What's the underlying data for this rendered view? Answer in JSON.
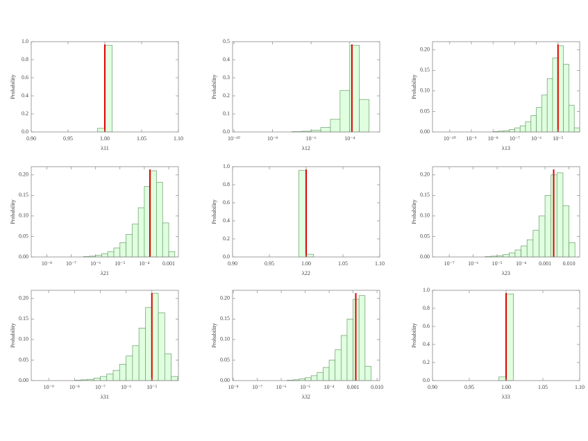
{
  "chart_data": [
    {
      "type": "histogram",
      "xlabel": "λ11",
      "ylabel": "Probability",
      "xscale": "linear",
      "color": "#dfffdf",
      "line_color": "#e00000",
      "bins": [
        0.99,
        1.0,
        1.01
      ],
      "values": [
        0.04,
        0.96
      ],
      "reference_line": 1.0,
      "xlim": [
        0.9,
        1.1
      ],
      "xticks": [
        {
          "value": 0.9,
          "label": "0.90"
        },
        0.95,
        {
          "value": 1,
          "label": "1.00"
        },
        1.05,
        {
          "value": 1.1,
          "label": "1.10"
        }
      ],
      "ylim": [
        0,
        1
      ],
      "yticks": [
        {
          "value": 0,
          "label": "0.0"
        },
        0.2,
        0.4,
        0.6,
        0.8,
        {
          "value": 1,
          "label": "1.0"
        }
      ]
    },
    {
      "type": "histogram",
      "xlabel": "λ12",
      "ylabel": "Probability",
      "xscale": "log",
      "color": "#dfffdf",
      "line_color": "#e00000",
      "bins": [
        1e-07,
        3.162e-07,
        1e-06,
        3.162e-06,
        1e-05,
        3.162e-05,
        0.0001,
        0.0003162,
        0.001
      ],
      "values": [
        0.002,
        0.004,
        0.01,
        0.025,
        0.07,
        0.23,
        0.48,
        0.18
      ],
      "reference_line": 0.00013,
      "xlim": [
        8.5e-11,
        0.0036
      ],
      "xticks": [
        {
          "value": 1e-10,
          "label": "10⁻¹⁰"
        },
        {
          "value": 1e-08,
          "label": "10⁻⁸"
        },
        {
          "value": 1e-06,
          "label": "10⁻⁶"
        },
        {
          "value": 0.0001,
          "label": "10⁻⁴"
        }
      ],
      "ylim": [
        0,
        0.5
      ],
      "yticks": [
        {
          "value": 0,
          "label": "0.0"
        },
        0.1,
        0.2,
        0.3,
        0.4,
        0.5
      ]
    },
    {
      "type": "histogram",
      "xlabel": "λ13",
      "ylabel": "Probability",
      "xscale": "log",
      "color": "#dfffdf",
      "line_color": "#e00000",
      "bins": [
        1e-08,
        1.778e-08,
        3.162e-08,
        5.623e-08,
        1e-07,
        1.778e-07,
        3.162e-07,
        5.623e-07,
        1e-06,
        1.778e-06,
        3.162e-06,
        5.623e-06,
        1e-05,
        1.778e-05,
        3.162e-05,
        5.623e-05,
        0.0001
      ],
      "values": [
        0.001,
        0.002,
        0.003,
        0.006,
        0.01,
        0.015,
        0.025,
        0.04,
        0.06,
        0.09,
        0.13,
        0.18,
        0.21,
        0.165,
        0.065,
        0.01
      ],
      "reference_line": 1e-05,
      "xlim": [
        1.6e-11,
        0.0001
      ],
      "xticks": [
        {
          "value": 1e-10,
          "label": "10⁻¹⁰"
        },
        {
          "value": 1e-09,
          "label": "10⁻⁹"
        },
        {
          "value": 1e-08,
          "label": "10⁻⁸"
        },
        {
          "value": 1e-07,
          "label": "10⁻⁷"
        },
        {
          "value": 1e-06,
          "label": "10⁻⁶"
        },
        {
          "value": 1e-05,
          "label": "10⁻⁵"
        }
      ],
      "ylim": [
        0,
        0.22
      ],
      "yticks": [
        {
          "value": 0,
          "label": "0.00"
        },
        0.05,
        {
          "value": 0.1,
          "label": "0.10"
        },
        0.15,
        {
          "value": 0.2,
          "label": "0.20"
        }
      ]
    },
    {
      "type": "histogram",
      "xlabel": "λ21",
      "ylabel": "Probability",
      "xscale": "log",
      "color": "#dfffdf",
      "line_color": "#e00000",
      "bins": [
        3.162e-07,
        5.623e-07,
        1e-06,
        1.778e-06,
        3.162e-06,
        5.623e-06,
        1e-05,
        1.778e-05,
        3.162e-05,
        5.623e-05,
        0.0001,
        0.0001778,
        0.0003162,
        0.0005623,
        0.001,
        0.001778
      ],
      "values": [
        0.001,
        0.002,
        0.004,
        0.008,
        0.013,
        0.022,
        0.035,
        0.055,
        0.08,
        0.12,
        0.172,
        0.21,
        0.182,
        0.083,
        0.013
      ],
      "reference_line": 0.00017,
      "xlim": [
        2.3e-09,
        0.0025
      ],
      "xticks": [
        {
          "value": 1e-08,
          "label": "10⁻⁸"
        },
        {
          "value": 1e-07,
          "label": "10⁻⁷"
        },
        {
          "value": 1e-06,
          "label": "10⁻⁶"
        },
        {
          "value": 1e-05,
          "label": "10⁻⁵"
        },
        {
          "value": 0.0001,
          "label": "10⁻⁴"
        },
        0.001
      ],
      "ylim": [
        0,
        0.22
      ],
      "yticks": [
        {
          "value": 0,
          "label": "0.00"
        },
        0.05,
        {
          "value": 0.1,
          "label": "0.10"
        },
        0.15,
        {
          "value": 0.2,
          "label": "0.20"
        }
      ]
    },
    {
      "type": "histogram",
      "xlabel": "λ22",
      "ylabel": "Probability",
      "xscale": "linear",
      "color": "#dfffdf",
      "line_color": "#e00000",
      "bins": [
        0.99,
        1.0,
        1.01
      ],
      "values": [
        0.96,
        0.03
      ],
      "reference_line": 1.0,
      "xlim": [
        0.9,
        1.1
      ],
      "xticks": [
        {
          "value": 0.9,
          "label": "0.90"
        },
        0.95,
        {
          "value": 1,
          "label": "1.00"
        },
        1.05,
        {
          "value": 1.1,
          "label": "1.10"
        }
      ],
      "ylim": [
        0,
        1
      ],
      "yticks": [
        {
          "value": 0,
          "label": "0.0"
        },
        0.2,
        0.4,
        0.6,
        0.8,
        {
          "value": 1,
          "label": "1.0"
        }
      ]
    },
    {
      "type": "histogram",
      "xlabel": "λ23",
      "ylabel": "Probability",
      "xscale": "log",
      "color": "#dfffdf",
      "line_color": "#e00000",
      "bins": [
        3.162e-06,
        5.623e-06,
        1e-05,
        1.778e-05,
        3.162e-05,
        5.623e-05,
        0.0001,
        0.0001778,
        0.0003162,
        0.0005623,
        0.001,
        0.001778,
        0.003162,
        0.005623,
        0.01,
        0.01778
      ],
      "values": [
        0.001,
        0.002,
        0.003,
        0.006,
        0.01,
        0.017,
        0.027,
        0.042,
        0.065,
        0.1,
        0.15,
        0.2,
        0.205,
        0.125,
        0.035
      ],
      "reference_line": 0.0023,
      "xlim": [
        2e-08,
        0.028
      ],
      "xticks": [
        {
          "value": 1e-07,
          "label": "10⁻⁷"
        },
        {
          "value": 1e-06,
          "label": "10⁻⁶"
        },
        {
          "value": 1e-05,
          "label": "10⁻⁵"
        },
        {
          "value": 0.0001,
          "label": "10⁻⁴"
        },
        0.001,
        {
          "value": 0.01,
          "label": "0.010"
        }
      ],
      "ylim": [
        0,
        0.22
      ],
      "yticks": [
        {
          "value": 0,
          "label": "0.00"
        },
        0.05,
        {
          "value": 0.1,
          "label": "0.10"
        },
        0.15,
        {
          "value": 0.2,
          "label": "0.20"
        }
      ]
    },
    {
      "type": "histogram",
      "xlabel": "λ31",
      "ylabel": "Probability",
      "xscale": "log",
      "color": "#dfffdf",
      "line_color": "#e00000",
      "bins": [
        1e-08,
        1.778e-08,
        3.162e-08,
        5.623e-08,
        1e-07,
        1.778e-07,
        3.162e-07,
        5.623e-07,
        1e-06,
        1.778e-06,
        3.162e-06,
        5.623e-06,
        1e-05,
        1.778e-05,
        3.162e-05,
        5.623e-05,
        0.0001
      ],
      "values": [
        0.001,
        0.002,
        0.003,
        0.006,
        0.01,
        0.016,
        0.025,
        0.04,
        0.06,
        0.085,
        0.128,
        0.178,
        0.213,
        0.165,
        0.065,
        0.01
      ],
      "reference_line": 1e-05,
      "xlim": [
        2.1e-10,
        0.000107
      ],
      "xticks": [
        {
          "value": 1e-09,
          "label": "10⁻⁹"
        },
        {
          "value": 1e-08,
          "label": "10⁻⁸"
        },
        {
          "value": 1e-07,
          "label": "10⁻⁷"
        },
        {
          "value": 1e-06,
          "label": "10⁻⁶"
        },
        {
          "value": 1e-05,
          "label": "10⁻⁵"
        }
      ],
      "ylim": [
        0,
        0.22
      ],
      "yticks": [
        {
          "value": 0,
          "label": "0.00"
        },
        0.05,
        {
          "value": 0.1,
          "label": "0.10"
        },
        0.15,
        {
          "value": 0.2,
          "label": "0.20"
        }
      ]
    },
    {
      "type": "histogram",
      "xlabel": "λ32",
      "ylabel": "Probability",
      "xscale": "log",
      "color": "#dfffdf",
      "line_color": "#e00000",
      "bins": [
        1.778e-06,
        3.162e-06,
        5.623e-06,
        1e-05,
        1.778e-05,
        3.162e-05,
        5.623e-05,
        0.0001,
        0.0001778,
        0.0003162,
        0.0005623,
        0.001,
        0.001778,
        0.003162,
        0.005623
      ],
      "values": [
        0.001,
        0.002,
        0.004,
        0.007,
        0.012,
        0.02,
        0.032,
        0.05,
        0.075,
        0.11,
        0.15,
        0.198,
        0.207,
        0.035
      ],
      "reference_line": 0.0013,
      "xlim": [
        9.3e-09,
        0.013
      ],
      "xticks": [
        {
          "value": 1e-08,
          "label": "10⁻⁸"
        },
        {
          "value": 1e-07,
          "label": "10⁻⁷"
        },
        {
          "value": 1e-06,
          "label": "10⁻⁶"
        },
        {
          "value": 1e-05,
          "label": "10⁻⁵"
        },
        {
          "value": 0.0001,
          "label": "10⁻⁴"
        },
        0.001,
        {
          "value": 0.01,
          "label": "0.010"
        }
      ],
      "ylim": [
        0,
        0.22
      ],
      "yticks": [
        {
          "value": 0,
          "label": "0.00"
        },
        0.05,
        {
          "value": 0.1,
          "label": "0.10"
        },
        0.15,
        {
          "value": 0.2,
          "label": "0.20"
        }
      ]
    },
    {
      "type": "histogram",
      "xlabel": "λ33",
      "ylabel": "Probability",
      "xscale": "linear",
      "color": "#dfffdf",
      "line_color": "#e00000",
      "bins": [
        0.99,
        1.0,
        1.01
      ],
      "values": [
        0.04,
        0.96
      ],
      "reference_line": 1.0,
      "xlim": [
        0.9,
        1.1
      ],
      "xticks": [
        {
          "value": 0.9,
          "label": "0.90"
        },
        0.95,
        {
          "value": 1,
          "label": "1.00"
        },
        1.05,
        {
          "value": 1.1,
          "label": "1.10"
        }
      ],
      "ylim": [
        0,
        1
      ],
      "yticks": [
        {
          "value": 0,
          "label": "0.0"
        },
        0.2,
        0.4,
        0.6,
        0.8,
        {
          "value": 1,
          "label": "1.0"
        }
      ]
    }
  ]
}
